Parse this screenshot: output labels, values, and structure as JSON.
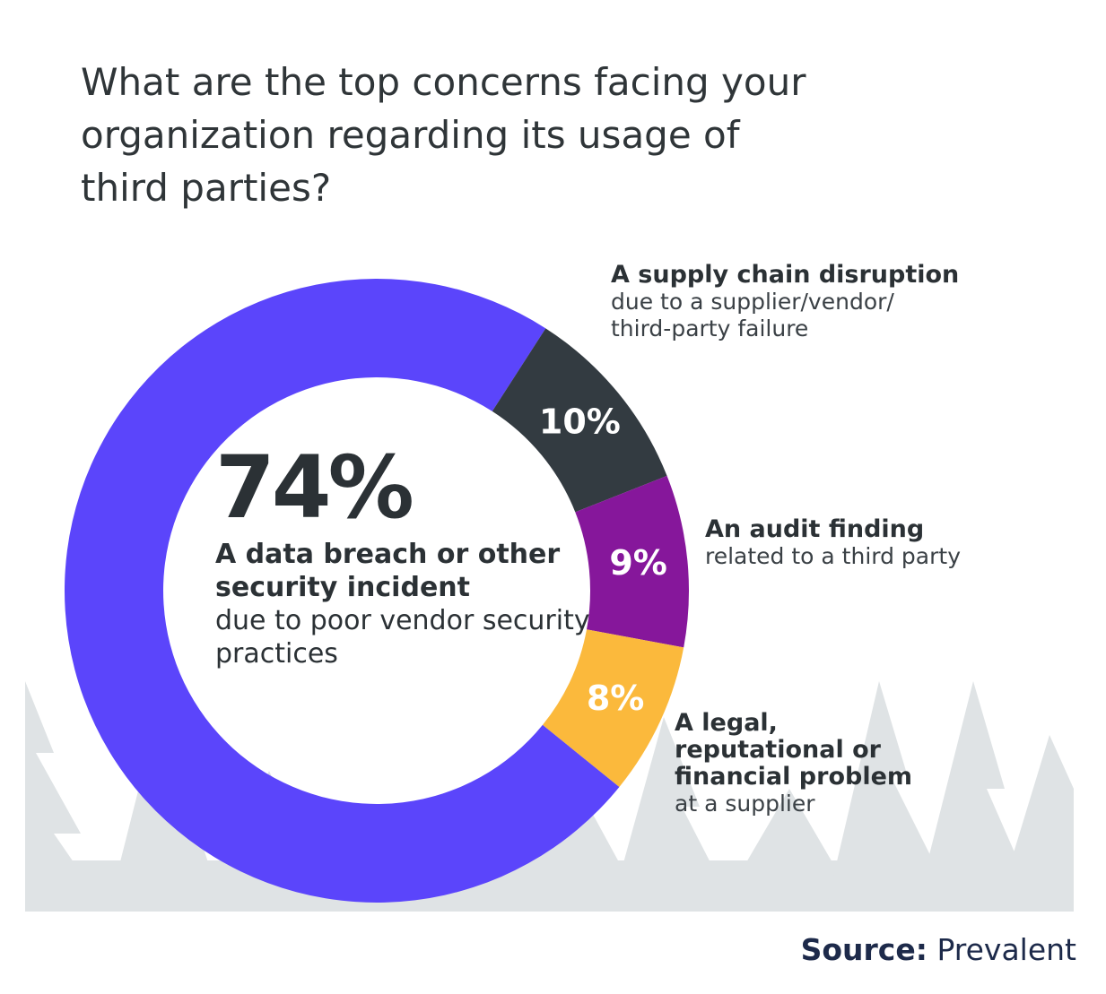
{
  "chart_data": {
    "type": "donut",
    "title": "What are the top concerns facing your organization regarding its usage of third parties?",
    "categories": [
      "A data breach or other security incident",
      "A supply chain disruption",
      "An audit finding",
      "A legal, reputational or financial problem"
    ],
    "descriptions": [
      "due to poor vendor security practices",
      "due to a supplier/vendor/ third-party failure",
      "related to a third party",
      "at a supplier"
    ],
    "values": [
      74,
      10,
      9,
      8
    ],
    "value_labels": [
      "74%",
      "10%",
      "9%",
      "8%"
    ],
    "colors": [
      "#5b45fb",
      "#333b41",
      "#86179b",
      "#fbb93c"
    ],
    "source": {
      "label": "Source:",
      "name": "Prevalent"
    }
  }
}
